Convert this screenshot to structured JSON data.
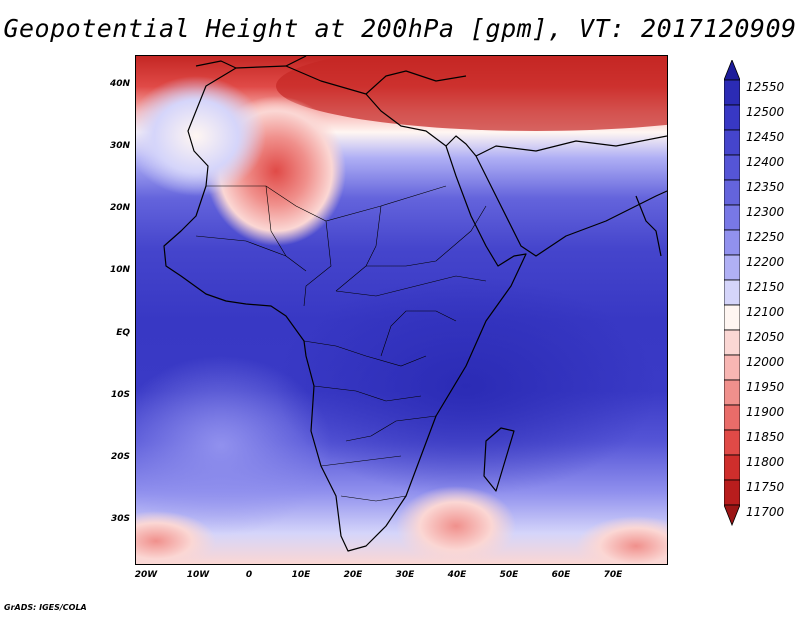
{
  "title": "Geopotential Height at 200hPa [gpm], VT: 2017120909",
  "credit": "GrADS: IGES/COLA",
  "map": {
    "lat_labels": [
      "40N",
      "30N",
      "20N",
      "10N",
      "EQ",
      "10S",
      "20S",
      "30S"
    ],
    "lon_labels": [
      "20W",
      "10W",
      "0",
      "10E",
      "20E",
      "30E",
      "40E",
      "50E",
      "60E",
      "70E"
    ],
    "lat_range": [
      -37,
      45
    ],
    "lon_range": [
      -22,
      80
    ]
  },
  "legend": {
    "values": [
      "12550",
      "12500",
      "12450",
      "12400",
      "12350",
      "12300",
      "12250",
      "12200",
      "12150",
      "12100",
      "12050",
      "12000",
      "11950",
      "11900",
      "11850",
      "11800",
      "11750",
      "11700"
    ],
    "colors": [
      "#1d1c9a",
      "#2b2bb5",
      "#3838c4",
      "#4545cc",
      "#5555d6",
      "#6464dc",
      "#7878e6",
      "#9191ee",
      "#b0b0f5",
      "#d5d5fa",
      "#fff6f2",
      "#fbd7d4",
      "#f8b6b3",
      "#f0908c",
      "#e96c69",
      "#e04a47",
      "#cf2e2c",
      "#b81d1d",
      "#9b1515"
    ]
  }
}
